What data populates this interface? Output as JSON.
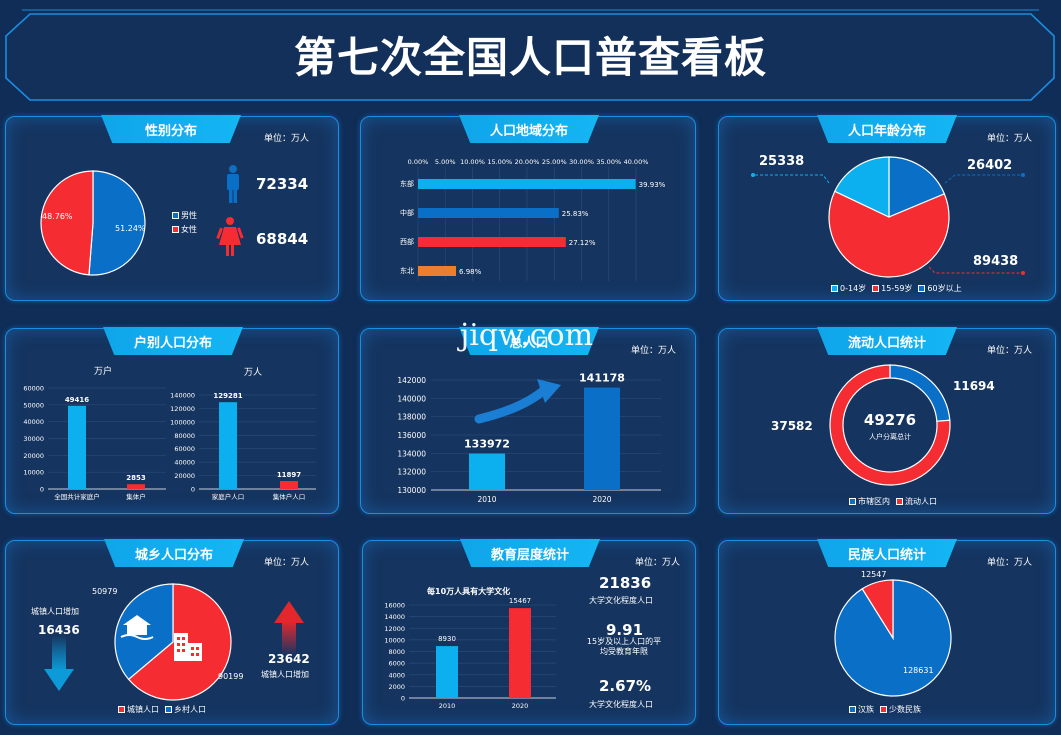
{
  "title": "第七次全国人口普查看板",
  "watermark": "jiqw.com",
  "colors": {
    "blue": "#0a6fc7",
    "red": "#f62c33",
    "cyan": "#0db0ef",
    "orange": "#ec7e32",
    "bg": "#0f2d56"
  },
  "gender": {
    "title": "性别分布",
    "unit": "单位：万人",
    "male_pct": "51.24%",
    "female_pct": "48.76%",
    "male_value": "72334",
    "female_value": "68844",
    "legend": [
      "男性",
      "女性"
    ],
    "male_icon": "male-person-icon",
    "female_icon": "female-person-icon"
  },
  "region": {
    "title": "人口地域分布",
    "ticks": [
      "0.00%",
      "5.00%",
      "10.00%",
      "15.00%",
      "20.00%",
      "25.00%",
      "30.00%",
      "35.00%",
      "40.00%"
    ]
  },
  "age": {
    "title": "人口年龄分布",
    "unit": "单位：万人",
    "labels": [
      "25338",
      "26402",
      "89438"
    ],
    "legend": [
      "0-14岁",
      "15-59岁",
      "60岁以上"
    ]
  },
  "household": {
    "title": "户别人口分布",
    "left_unit": "万户",
    "right_unit": "万人",
    "left_ticks": [
      "60000",
      "50000",
      "40000",
      "30000",
      "20000",
      "10000",
      "0"
    ],
    "right_ticks": [
      "140000",
      "120000",
      "100000",
      "80000",
      "60000",
      "40000",
      "20000",
      "0"
    ]
  },
  "total": {
    "title": "总人口",
    "unit": "单位：万人",
    "ticks": [
      "142000",
      "140000",
      "138000",
      "136000",
      "134000",
      "132000",
      "130000"
    ],
    "arrow_icon": "trend-up-arrow-icon"
  },
  "floating": {
    "title": "流动人口统计",
    "unit": "单位：万人",
    "center_value": "49276",
    "center_label": "人户分离总计",
    "left_value": "37582",
    "right_value": "11694",
    "legend": [
      "市辖区内",
      "流动人口"
    ]
  },
  "urban": {
    "title": "城乡人口分布",
    "unit": "单位：万人",
    "left_label": "城镇人口增加",
    "left_value": "16436",
    "right_value": "23642",
    "right_label": "城镇人口增加",
    "pie_top": "50979",
    "pie_bottom": "90199",
    "legend": [
      "城镇人口",
      "乡村人口"
    ],
    "house_icon": "house-icon",
    "building_icon": "building-icon"
  },
  "education": {
    "title": "教育层度统计",
    "unit": "单位：万人",
    "chart_title": "每10万人具有大学文化",
    "ticks": [
      "16000",
      "14000",
      "12000",
      "10000",
      "8000",
      "6000",
      "4000",
      "2000",
      "0"
    ],
    "stats": [
      {
        "value": "21836",
        "label": "大学文化程度人口"
      },
      {
        "value": "9.91",
        "label": "15岁及以上人口的平均受教育年限"
      },
      {
        "value": "2.67%",
        "label": "大学文化程度人口"
      }
    ]
  },
  "ethnic": {
    "title": "民族人口统计",
    "unit": "单位：万人",
    "han_value": "128631",
    "minority_value": "12547",
    "legend": [
      "汉族",
      "少数民族"
    ]
  },
  "chart_data": [
    {
      "type": "pie",
      "title": "性别分布",
      "categories": [
        "男性",
        "女性"
      ],
      "values": [
        51.24,
        48.76
      ]
    },
    {
      "type": "bar",
      "title": "人口地域分布",
      "categories": [
        "东部",
        "中部",
        "西部",
        "东北"
      ],
      "values": [
        39.93,
        25.83,
        27.12,
        6.98
      ],
      "xlim": [
        0,
        40
      ]
    },
    {
      "type": "pie",
      "title": "人口年龄分布",
      "categories": [
        "0-14岁",
        "15-59岁",
        "60岁以上"
      ],
      "values": [
        25338,
        89438,
        26402
      ]
    },
    {
      "type": "bar",
      "title": "户别人口分布",
      "xlabel": "",
      "ylabel": "万户",
      "categories": [
        "全国共计家庭户",
        "集体户"
      ],
      "values": [
        49416,
        2853
      ],
      "ylim": [
        0,
        60000
      ]
    },
    {
      "type": "bar",
      "title": "户别人口分布",
      "ylabel": "万人",
      "categories": [
        "家庭户人口",
        "集体户人口"
      ],
      "values": [
        129281,
        11897
      ],
      "ylim": [
        0,
        140000
      ]
    },
    {
      "type": "bar",
      "title": "总人口",
      "categories": [
        "2010",
        "2020"
      ],
      "values": [
        133972,
        141178
      ],
      "ylim": [
        130000,
        142000
      ]
    },
    {
      "type": "pie",
      "title": "流动人口统计",
      "categories": [
        "市辖区内",
        "流动人口"
      ],
      "values": [
        11694,
        37582
      ]
    },
    {
      "type": "pie",
      "title": "城乡人口分布",
      "categories": [
        "城镇人口",
        "乡村人口"
      ],
      "values": [
        90199,
        50979
      ]
    },
    {
      "type": "bar",
      "title": "每10万人具有大学文化",
      "categories": [
        "2010",
        "2020"
      ],
      "values": [
        8930,
        15467
      ],
      "ylim": [
        0,
        16000
      ]
    },
    {
      "type": "pie",
      "title": "民族人口统计",
      "categories": [
        "汉族",
        "少数民族"
      ],
      "values": [
        128631,
        12547
      ]
    }
  ]
}
